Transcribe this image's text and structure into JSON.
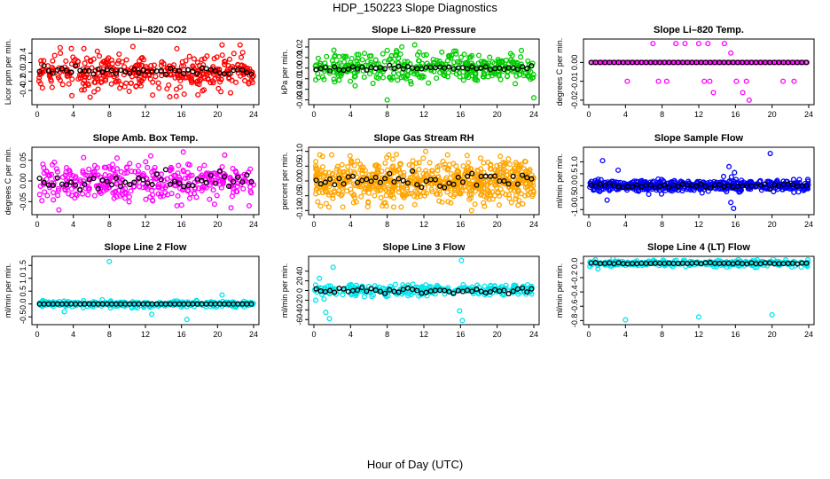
{
  "page": {
    "title": "HDP_150223  Slope Diagnostics",
    "x_label": "Hour of Day (UTC)"
  },
  "chart_data": [
    {
      "id": "p1",
      "type": "scatter",
      "title": "Slope Li–820 CO2",
      "ylabel": "Licor ppm per min.",
      "xlim": [
        0,
        24
      ],
      "ylim": [
        -0.65,
        0.65
      ],
      "xticks": [
        0,
        4,
        8,
        12,
        16,
        20,
        24
      ],
      "yticks": [
        -0.4,
        -0.2,
        0.0,
        0.2,
        0.4
      ],
      "ytick_labels": [
        "-0.4",
        "-0.2",
        "0.0",
        "0.2",
        "0.4"
      ],
      "fill_color": "#ff0000",
      "spread": 0.18,
      "n": 380,
      "mean_color": "#000000",
      "mean_amp": 0.05,
      "outliers": [
        [
          20.5,
          0.58
        ],
        [
          22.5,
          0.58
        ],
        [
          11.5,
          -0.3
        ],
        [
          12.8,
          -0.5
        ],
        [
          16.3,
          -0.48
        ],
        [
          13.5,
          -0.35
        ],
        [
          10.2,
          -0.42
        ],
        [
          20.1,
          -0.36
        ]
      ]
    },
    {
      "id": "p2",
      "type": "scatter",
      "title": "Slope Li–820 Pressure",
      "ylabel": "kPa per min.",
      "xlim": [
        0,
        24
      ],
      "ylim": [
        -0.032,
        0.025
      ],
      "xticks": [
        0,
        4,
        8,
        12,
        16,
        20,
        24
      ],
      "yticks": [
        -0.03,
        -0.02,
        -0.01,
        0.0,
        0.01,
        0.02
      ],
      "ytick_labels": [
        "-0.03",
        "-0.02",
        "-0.01",
        "0.00",
        "0.01",
        "0.02"
      ],
      "fill_color": "#00cc00",
      "spread": 0.007,
      "n": 380,
      "mean_color": "#000000",
      "mean_amp": 0.001,
      "outliers": [
        [
          0.2,
          -0.011
        ],
        [
          8.0,
          -0.03
        ],
        [
          11.0,
          0.022
        ],
        [
          15.5,
          0.016
        ],
        [
          24.0,
          -0.028
        ],
        [
          12.5,
          -0.014
        ],
        [
          18.0,
          0.012
        ]
      ]
    },
    {
      "id": "p3",
      "type": "scatter",
      "title": "Slope Li–820 Temp.",
      "ylabel": "degrees C per min.",
      "xlim": [
        0,
        24
      ],
      "ylim": [
        -0.021,
        0.011
      ],
      "xticks": [
        0,
        4,
        8,
        12,
        16,
        20,
        24
      ],
      "yticks": [
        -0.02,
        -0.01,
        0.0
      ],
      "ytick_labels": [
        "-0.02",
        "-0.01",
        "0.00"
      ],
      "fill_color": "#ff00ff",
      "mode": "quantized",
      "levels": [
        0.0,
        0.01,
        -0.01,
        -0.02
      ],
      "n": 120,
      "mean_color": "#000000",
      "mean_amp": 0.0,
      "outliers": [
        [
          7.0,
          0.01
        ],
        [
          9.5,
          0.01
        ],
        [
          10.5,
          0.01
        ],
        [
          12.0,
          0.01
        ],
        [
          13.0,
          0.01
        ],
        [
          14.8,
          0.01
        ],
        [
          4.2,
          -0.01
        ],
        [
          7.6,
          -0.01
        ],
        [
          8.5,
          -0.01
        ],
        [
          12.6,
          -0.01
        ],
        [
          13.2,
          -0.01
        ],
        [
          16.1,
          -0.01
        ],
        [
          17.2,
          -0.01
        ],
        [
          21.2,
          -0.01
        ],
        [
          22.4,
          -0.01
        ],
        [
          13.6,
          -0.016
        ],
        [
          16.8,
          -0.016
        ],
        [
          17.5,
          -0.02
        ],
        [
          15.5,
          0.005
        ]
      ]
    },
    {
      "id": "p4",
      "type": "scatter",
      "title": "Slope Amb. Box Temp.",
      "ylabel": "degrees C per min.",
      "xlim": [
        0,
        24
      ],
      "ylim": [
        -0.075,
        0.075
      ],
      "xticks": [
        0,
        4,
        8,
        12,
        16,
        20,
        24
      ],
      "yticks": [
        -0.05,
        0.0,
        0.05
      ],
      "ytick_labels": [
        "-0.05",
        "0.00",
        "0.05"
      ],
      "fill_color": "#ff00ff",
      "spread": 0.022,
      "n": 360,
      "mean_color": "#000000",
      "mean_amp": 0.01,
      "outliers": [
        [
          16.2,
          0.07
        ],
        [
          2.4,
          -0.07
        ],
        [
          15.5,
          -0.06
        ],
        [
          21.5,
          -0.065
        ],
        [
          23.5,
          -0.06
        ]
      ]
    },
    {
      "id": "p5",
      "type": "scatter",
      "title": "Slope Gas Stream RH",
      "ylabel": "percent per min.",
      "xlim": [
        0,
        24
      ],
      "ylim": [
        -0.105,
        0.105
      ],
      "xticks": [
        0,
        4,
        8,
        12,
        16,
        20,
        24
      ],
      "yticks": [
        -0.1,
        -0.05,
        0.0,
        0.05,
        0.1
      ],
      "ytick_labels": [
        "-0.10",
        "-0.05",
        "0.00",
        "0.05",
        "0.10"
      ],
      "fill_color": "#ffa500",
      "spread": 0.033,
      "n": 700,
      "mean_color": "#000000",
      "mean_amp": 0.012,
      "outliers": [
        [
          12.2,
          0.1
        ],
        [
          17.2,
          -0.1
        ],
        [
          9.0,
          0.09
        ]
      ]
    },
    {
      "id": "p6",
      "type": "scatter",
      "title": "Slope Sample Flow",
      "ylabel": "ml/min per min.",
      "xlim": [
        0,
        24
      ],
      "ylim": [
        -1.1,
        1.5
      ],
      "xticks": [
        0,
        4,
        8,
        12,
        16,
        20,
        24
      ],
      "yticks": [
        -1.0,
        -0.5,
        0.0,
        0.5,
        1.0
      ],
      "ytick_labels": [
        "-1.0",
        "-0.5",
        "0.0",
        "0.5",
        "1.0"
      ],
      "fill_color": "#0000ff",
      "spread": 0.11,
      "n": 620,
      "mean_color": "#000000",
      "mean_amp": 0.04,
      "outliers": [
        [
          1.5,
          1.05
        ],
        [
          19.8,
          1.35
        ],
        [
          2.0,
          -0.6
        ],
        [
          15.8,
          -0.95
        ],
        [
          15.3,
          0.8
        ],
        [
          15.9,
          0.55
        ],
        [
          3.2,
          0.65
        ],
        [
          15.5,
          -0.7
        ]
      ]
    },
    {
      "id": "p7",
      "type": "scatter",
      "title": "Slope Line 2 Flow",
      "ylabel": "ml/min per min.",
      "xlim": [
        0,
        24
      ],
      "ylim": [
        -0.7,
        1.75
      ],
      "xticks": [
        0,
        4,
        8,
        12,
        16,
        20,
        24
      ],
      "yticks": [
        -0.5,
        0.0,
        0.5,
        1.0,
        1.5
      ],
      "ytick_labels": [
        "-0.5",
        "0.0",
        "0.5",
        "1.0",
        "1.5"
      ],
      "fill_color": "#00e5ee",
      "spread": 0.06,
      "n": 300,
      "mean_color": "#000000",
      "mean_amp": 0.0,
      "outliers": [
        [
          8.0,
          1.65
        ],
        [
          16.6,
          -0.6
        ],
        [
          12.7,
          -0.4
        ],
        [
          3.0,
          -0.3
        ],
        [
          20.5,
          0.35
        ]
      ]
    },
    {
      "id": "p8",
      "type": "scatter",
      "title": "Slope Line 3 Flow",
      "ylabel": "ml/min per min.",
      "xlim": [
        0,
        24
      ],
      "ylim": [
        -65,
        65
      ],
      "xticks": [
        0,
        4,
        8,
        12,
        16,
        20,
        24
      ],
      "yticks": [
        -60,
        -40,
        -20,
        0,
        20,
        40
      ],
      "ytick_labels": [
        "-60",
        "-40",
        "-20",
        "0",
        "20",
        "40"
      ],
      "fill_color": "#00e5ee",
      "spread": 6,
      "n": 300,
      "mean_color": "#000000",
      "mean_amp": 3,
      "outliers": [
        [
          2.1,
          48
        ],
        [
          16.1,
          62
        ],
        [
          1.3,
          -45
        ],
        [
          1.7,
          -58
        ],
        [
          16.2,
          -62
        ],
        [
          15.9,
          -42
        ],
        [
          0.2,
          -20
        ],
        [
          0.6,
          25
        ]
      ]
    },
    {
      "id": "p9",
      "type": "scatter",
      "title": "Slope Line 4 (LT) Flow",
      "ylabel": "ml/min per min.",
      "xlim": [
        0,
        24
      ],
      "ylim": [
        -0.82,
        0.06
      ],
      "xticks": [
        0,
        4,
        8,
        12,
        16,
        20,
        24
      ],
      "yticks": [
        -0.8,
        -0.6,
        -0.4,
        -0.2,
        0.0
      ],
      "ytick_labels": [
        "-0.8",
        "-0.6",
        "-0.4",
        "-0.2",
        "0.0"
      ],
      "fill_color": "#00e5ee",
      "spread": 0.02,
      "n": 300,
      "mean_color": "#000000",
      "mean_amp": 0.005,
      "outliers": [
        [
          4.0,
          -0.79
        ],
        [
          12.0,
          -0.75
        ],
        [
          20.0,
          -0.72
        ],
        [
          1.0,
          -0.08
        ]
      ]
    }
  ]
}
